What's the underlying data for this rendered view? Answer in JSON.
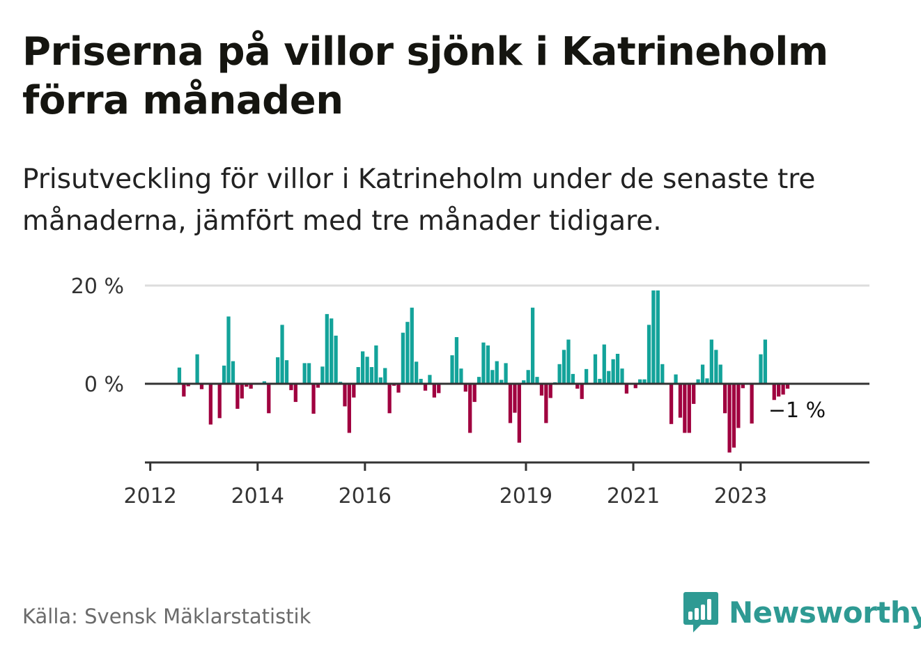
{
  "title": "Priserna på villor sjönk i Katrineholm förra månaden",
  "subtitle": "Prisutveckling för villor i Katrineholm under de senaste tre månaderna, jämfört med tre månader tidigare.",
  "source": "Källa: Svensk Mäklarstatistik",
  "brand": {
    "name": "Newsworthy",
    "icon": "bar-chart-speech-bubble-icon"
  },
  "colors": {
    "positive": "#13a39a",
    "negative": "#a0003f",
    "axis": "#333333",
    "grid": "#dddddd",
    "brand": "#2e9a93"
  },
  "chart_data": {
    "type": "bar",
    "title": "",
    "xlabel": "",
    "ylabel": "",
    "y_ticks": [
      {
        "value": 0,
        "label": "0 %"
      },
      {
        "value": 20,
        "label": "20 %"
      }
    ],
    "ylim": [
      -16,
      20
    ],
    "x_ticks": [
      {
        "value": 2012.0,
        "label": "2012"
      },
      {
        "value": 2014.0,
        "label": "2014"
      },
      {
        "value": 2016.0,
        "label": "2016"
      },
      {
        "value": 2019.0,
        "label": "2019"
      },
      {
        "value": 2021.0,
        "label": "2021"
      },
      {
        "value": 2023.0,
        "label": "2023"
      }
    ],
    "xlim": [
      2011.9,
      2025.4
    ],
    "grid": "horizontal",
    "annotation": {
      "text": "−1 %",
      "value": -1
    },
    "series": [
      {
        "x": [
          2012.542,
          2012.625,
          2012.708,
          2012.792,
          2012.875,
          2012.958,
          2013.042,
          2013.125,
          2013.208,
          2013.292,
          2013.375,
          2013.458,
          2013.542,
          2013.625,
          2013.708,
          2013.792,
          2013.875,
          2013.958,
          2014.042,
          2014.125,
          2014.208,
          2014.292,
          2014.375,
          2014.458,
          2014.542,
          2014.625,
          2014.708,
          2014.792,
          2014.875,
          2014.958,
          2015.042,
          2015.125,
          2015.208,
          2015.292,
          2015.375,
          2015.458,
          2015.542,
          2015.625,
          2015.708,
          2015.792,
          2015.875,
          2015.958,
          2016.042,
          2016.125,
          2016.208,
          2016.292,
          2016.375,
          2016.458,
          2016.542,
          2016.625,
          2016.708,
          2016.792,
          2016.875,
          2016.958,
          2017.042,
          2017.125,
          2017.208,
          2017.292,
          2017.375,
          2017.458,
          2017.542,
          2017.625,
          2017.708,
          2017.792,
          2017.875,
          2017.958,
          2018.042,
          2018.125,
          2018.208,
          2018.292,
          2018.375,
          2018.458,
          2018.542,
          2018.625,
          2018.708,
          2018.792,
          2018.875,
          2018.958,
          2019.042,
          2019.125,
          2019.208,
          2019.292,
          2019.375,
          2019.458,
          2019.542,
          2019.625,
          2019.708,
          2019.792,
          2019.875,
          2019.958,
          2020.042,
          2020.125,
          2020.208,
          2020.292,
          2020.375,
          2020.458,
          2020.542,
          2020.625,
          2020.708,
          2020.792,
          2020.875,
          2020.958,
          2021.042,
          2021.125,
          2021.208,
          2021.292,
          2021.375,
          2021.458,
          2021.542,
          2021.625,
          2021.708,
          2021.792,
          2021.875,
          2021.958,
          2022.042,
          2022.125,
          2022.208,
          2022.292,
          2022.375,
          2022.458,
          2022.542,
          2022.625,
          2022.708,
          2022.792,
          2022.875,
          2022.958,
          2023.042,
          2023.125,
          2023.208,
          2023.292,
          2023.375,
          2023.458,
          2023.542,
          2023.625,
          2023.708,
          2023.792,
          2023.875,
          2023.958
        ],
        "values": [
          3.3,
          -2.6,
          -0.5,
          0,
          6.0,
          -1.1,
          0,
          -8.3,
          0,
          -7.0,
          3.7,
          13.7,
          4.6,
          -5.1,
          -3.0,
          -0.6,
          -1.0,
          0,
          0,
          0.5,
          -6.0,
          0,
          5.4,
          12.0,
          4.8,
          -1.3,
          -3.7,
          0,
          4.2,
          4.2,
          -6.1,
          -0.8,
          3.5,
          14.2,
          13.3,
          9.8,
          0.4,
          -4.6,
          -10.0,
          -2.8,
          3.4,
          6.6,
          5.5,
          3.4,
          7.8,
          1.3,
          3.2,
          -6.0,
          -0.4,
          -1.8,
          10.4,
          12.6,
          15.5,
          4.5,
          1.0,
          -1.4,
          1.8,
          -2.8,
          -1.9,
          0,
          0,
          5.8,
          9.5,
          3.1,
          -1.6,
          -10.0,
          -3.7,
          1.4,
          8.4,
          7.8,
          2.8,
          4.6,
          0.8,
          4.2,
          -8.0,
          -5.9,
          -12.0,
          0.7,
          2.8,
          15.5,
          1.4,
          -2.4,
          -8.0,
          -2.9,
          0.3,
          4.0,
          6.9,
          9.0,
          2.0,
          -1.0,
          -3.1,
          3.0,
          0,
          6.0,
          1.0,
          8.0,
          2.6,
          5.0,
          6.1,
          3.1,
          -2.0,
          0,
          -0.9,
          0.9,
          0.9,
          12.0,
          19.0,
          19.0,
          4.0,
          0,
          -8.2,
          1.9,
          -6.9,
          -10.0,
          -10.0,
          -4.1,
          0.9,
          3.9,
          1.1,
          9.0,
          6.9,
          3.9,
          -6.0,
          -14.0,
          -13.0,
          -9.0,
          -0.9,
          0,
          -8.1,
          0,
          6.0,
          9.0,
          0,
          -3.3,
          -2.6,
          -2.2,
          -1.0,
          0
        ]
      }
    ]
  }
}
